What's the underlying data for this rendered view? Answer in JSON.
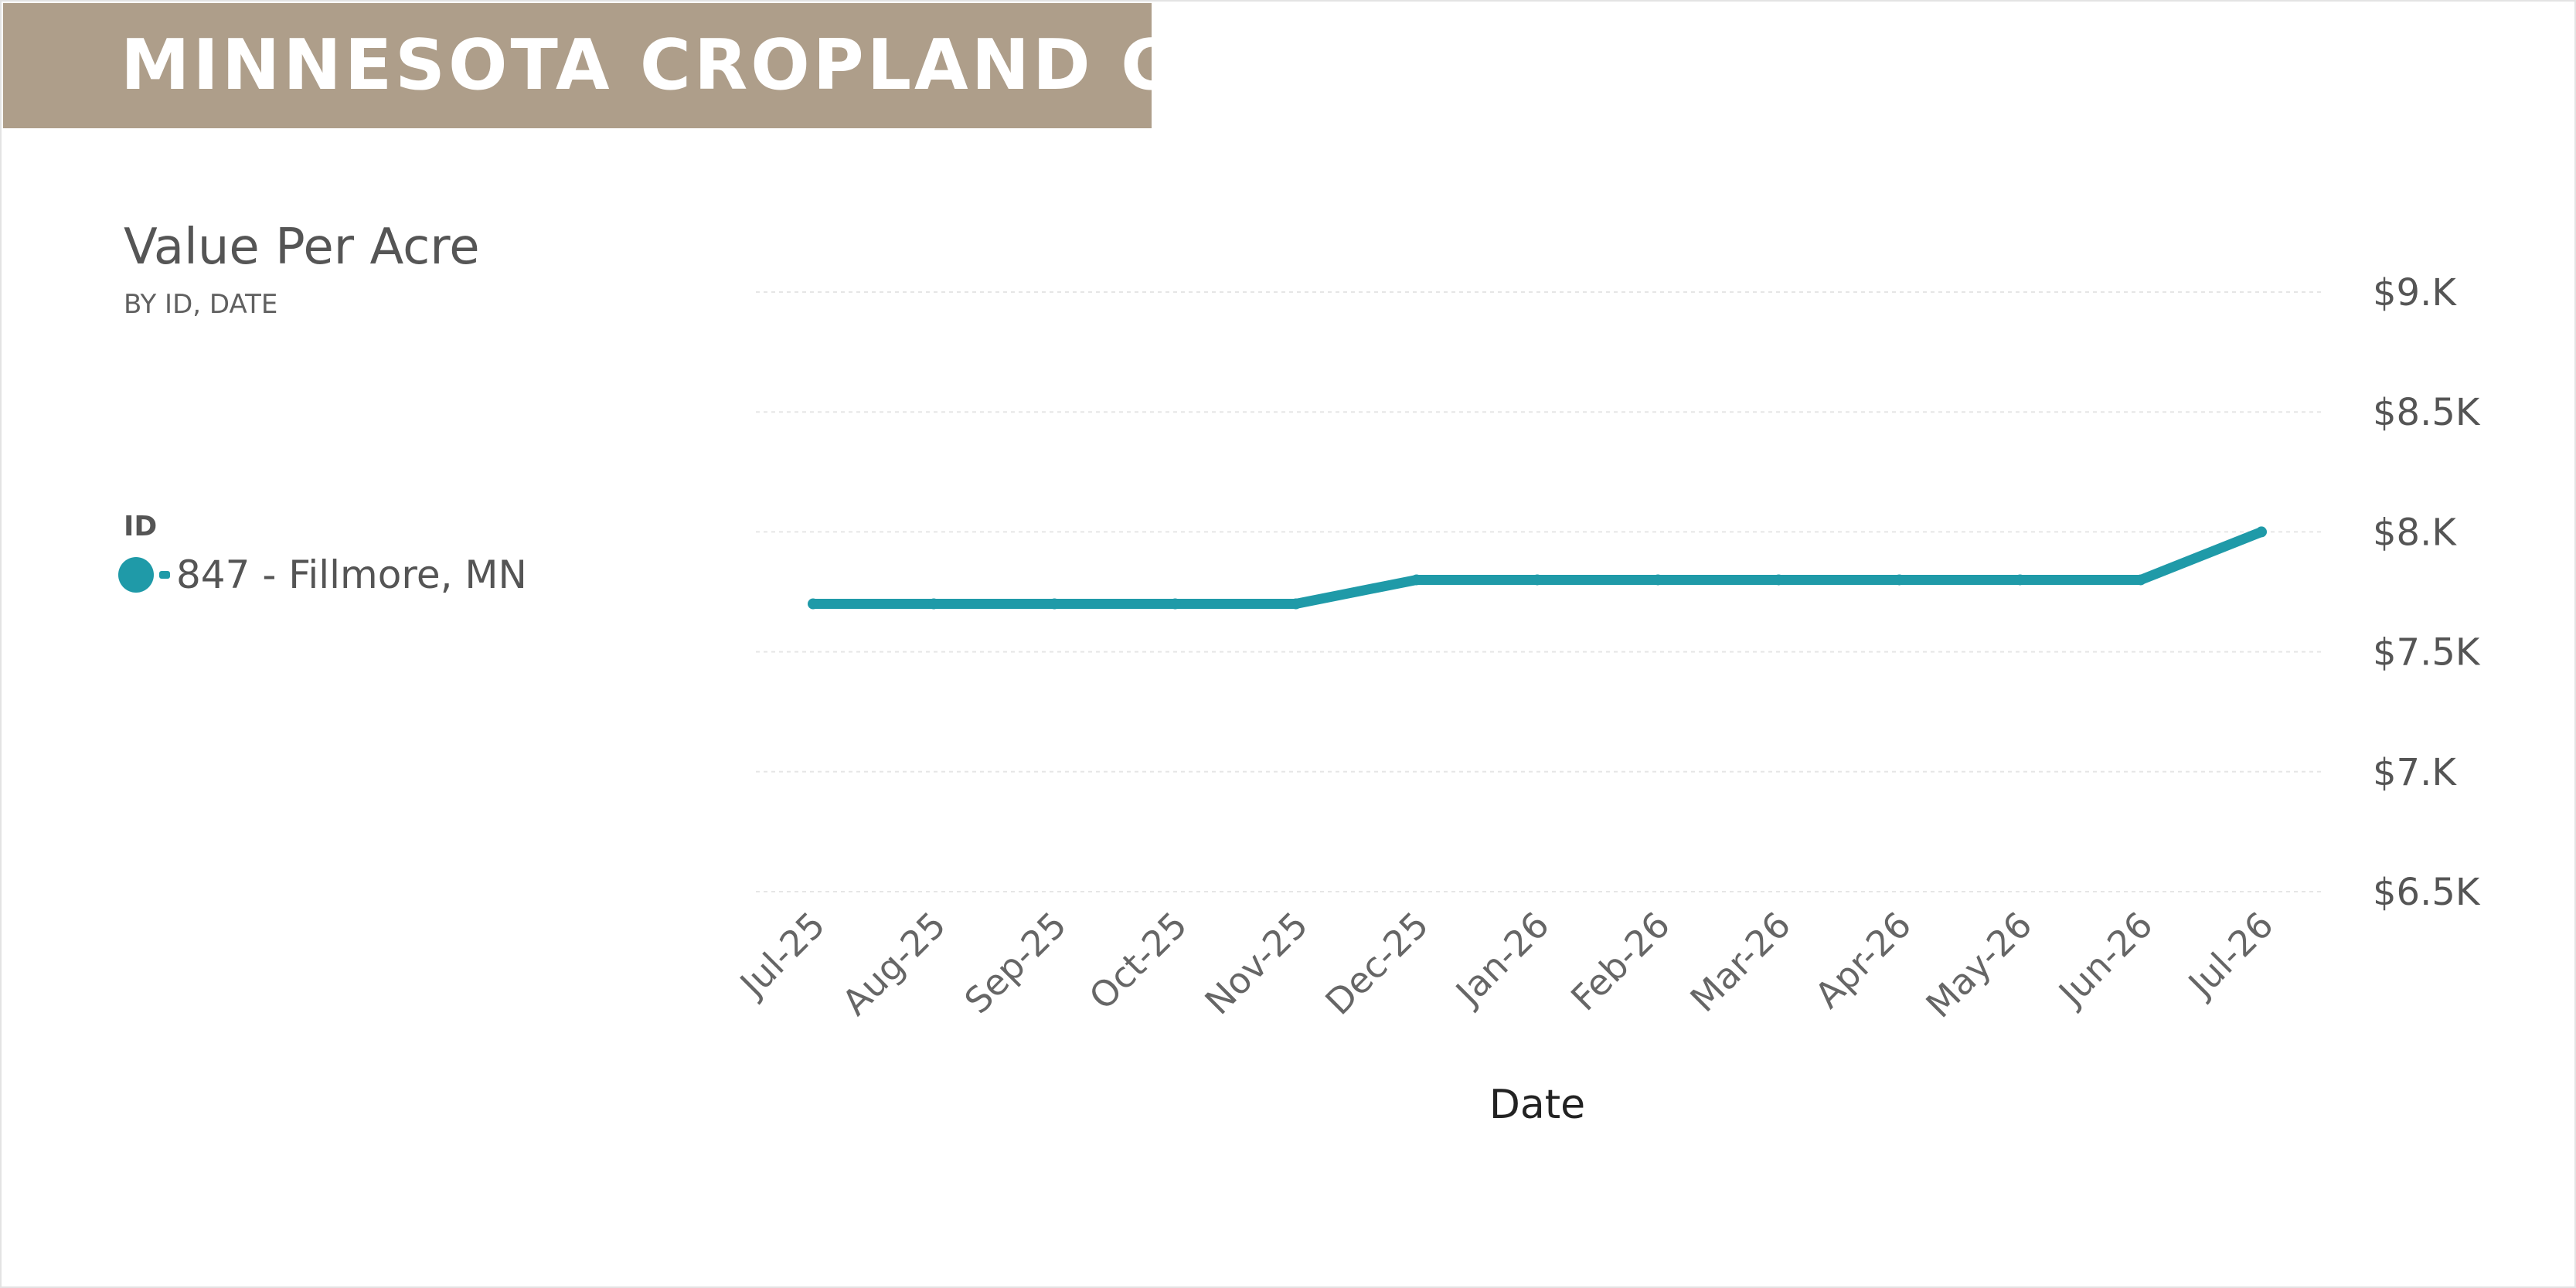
{
  "banner": {
    "title": "MINNESOTA CROPLAND C"
  },
  "chart_data": {
    "type": "line",
    "title": "Value Per Acre",
    "subtitle": "BY ID, DATE",
    "xlabel": "Date",
    "ylabel": "",
    "categories": [
      "Jul-25",
      "Aug-25",
      "Sep-25",
      "Oct-25",
      "Nov-25",
      "Dec-25",
      "Jan-26",
      "Feb-26",
      "Mar-26",
      "Apr-26",
      "May-26",
      "Jun-26",
      "Jul-26"
    ],
    "series": [
      {
        "name": "847 - Fillmore, MN",
        "color": "#1f9aa8",
        "values": [
          7700,
          7700,
          7700,
          7700,
          7700,
          7800,
          7800,
          7800,
          7800,
          7800,
          7800,
          7800,
          8000
        ]
      }
    ],
    "ylim": [
      6500,
      9000
    ],
    "yticks": [
      {
        "value": 9000,
        "label": "$9.K"
      },
      {
        "value": 8500,
        "label": "$8.5K"
      },
      {
        "value": 8000,
        "label": "$8.K"
      },
      {
        "value": 7500,
        "label": "$7.5K"
      },
      {
        "value": 7000,
        "label": "$7.K"
      },
      {
        "value": 6500,
        "label": "$6.5K"
      }
    ],
    "y_axis_position": "right",
    "grid": true,
    "legend": {
      "title": "ID",
      "position": "left"
    }
  }
}
